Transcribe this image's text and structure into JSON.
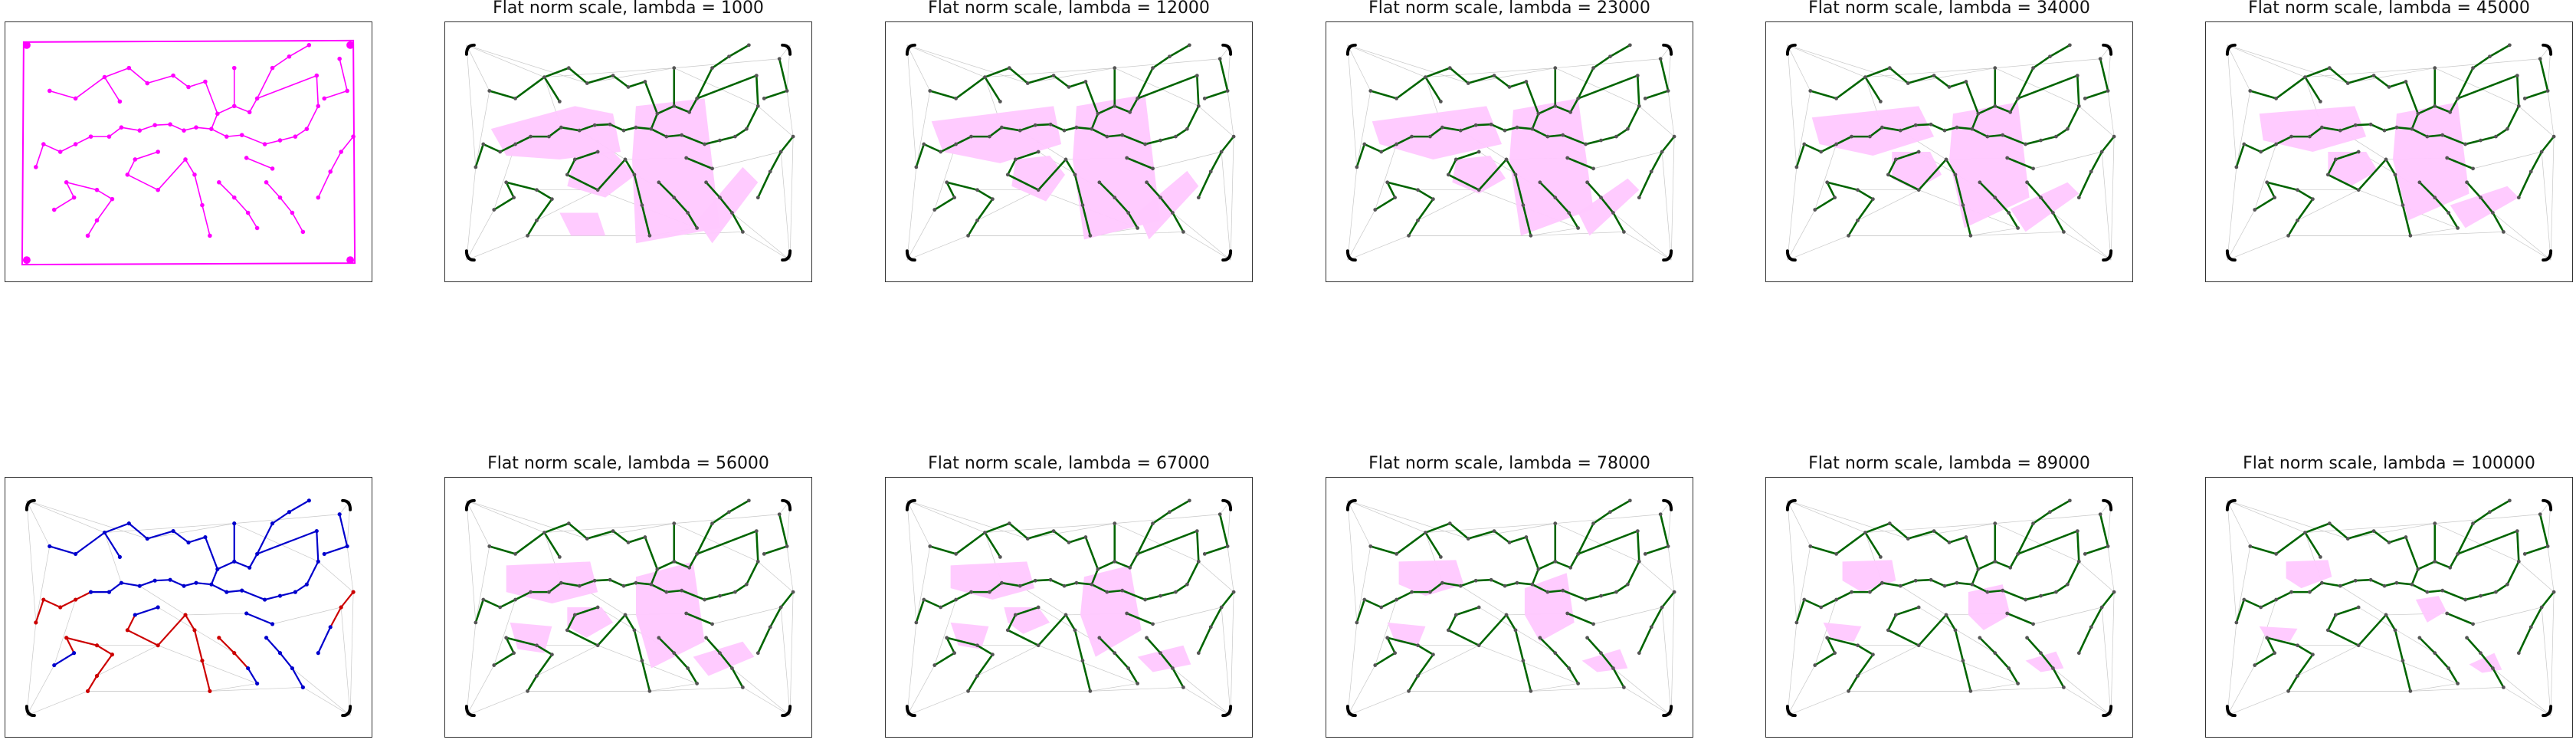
{
  "figure": {
    "reference_panels": [
      {
        "id": "original-graph",
        "style": "magenta-graph"
      },
      {
        "id": "partition-graph",
        "style": "blue-red-graph"
      }
    ],
    "result_panels": [
      {
        "title": "Flat norm scale, lambda = 1000",
        "lambda": 1000
      },
      {
        "title": "Flat norm scale, lambda = 12000",
        "lambda": 12000
      },
      {
        "title": "Flat norm scale, lambda = 23000",
        "lambda": 23000
      },
      {
        "title": "Flat norm scale, lambda = 34000",
        "lambda": 34000
      },
      {
        "title": "Flat norm scale, lambda = 45000",
        "lambda": 45000
      },
      {
        "title": "Flat norm scale, lambda = 56000",
        "lambda": 56000
      },
      {
        "title": "Flat norm scale, lambda = 67000",
        "lambda": 67000
      },
      {
        "title": "Flat norm scale, lambda = 78000",
        "lambda": 78000
      },
      {
        "title": "Flat norm scale, lambda = 89000",
        "lambda": 89000
      },
      {
        "title": "Flat norm scale, lambda = 100000",
        "lambda": 100000
      }
    ],
    "colors": {
      "magenta": "#ff00ff",
      "green": "#006400",
      "blue": "#0000cc",
      "red": "#cc0000",
      "region_fill": "#ffc8ff",
      "mesh": "#c8c8c8",
      "corner": "#000000",
      "node": "#555555"
    }
  }
}
